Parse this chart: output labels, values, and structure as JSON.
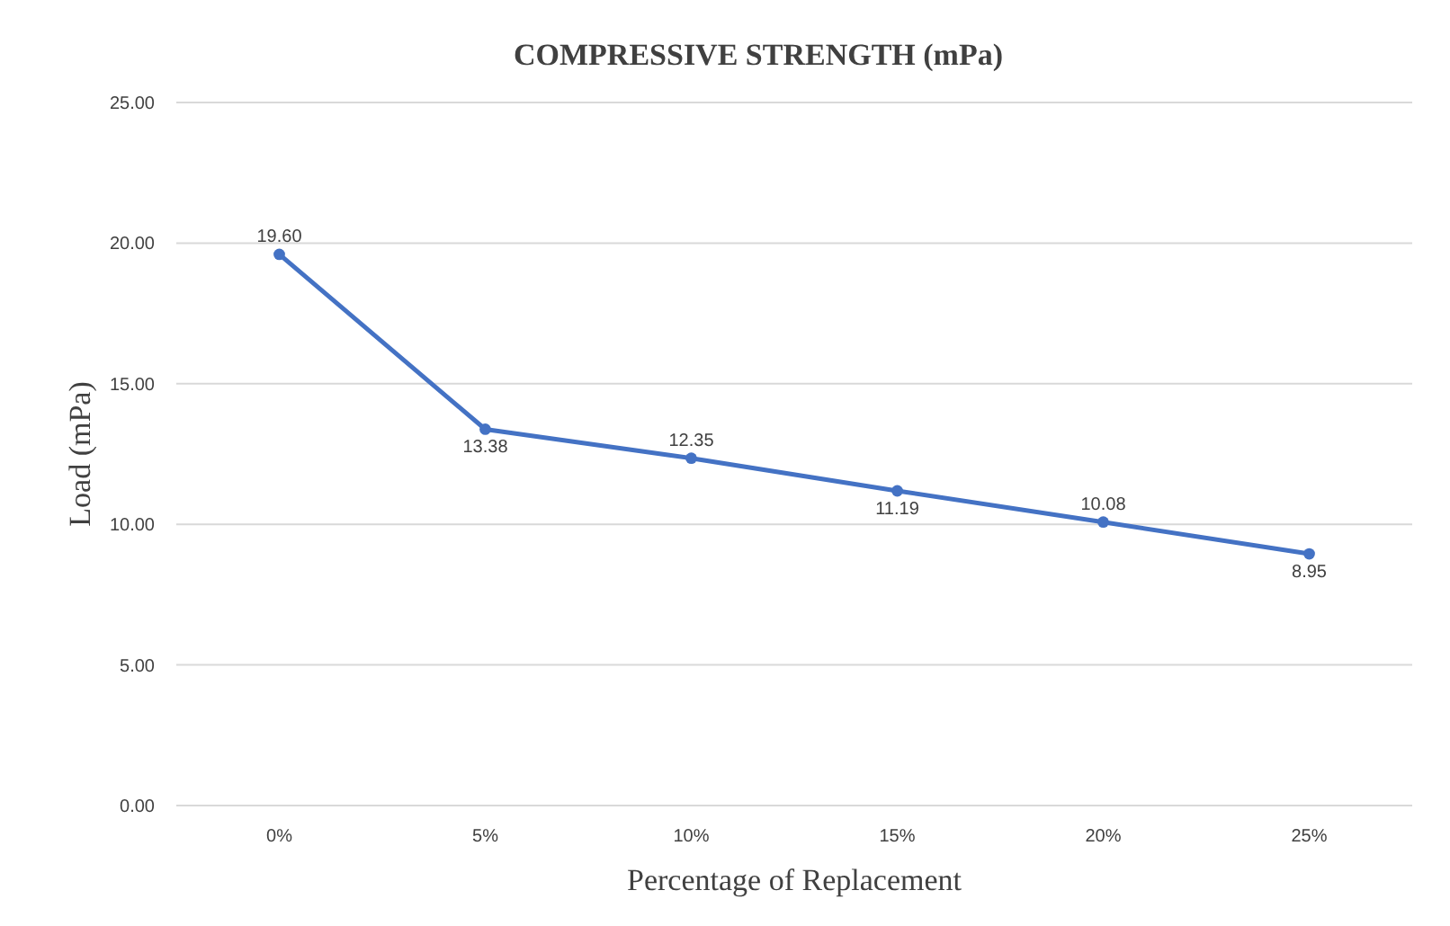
{
  "chart_data": {
    "type": "line",
    "title": "COMPRESSIVE STRENGTH (mPa)",
    "xlabel": "Percentage of Replacement",
    "ylabel": "Load (mPa)",
    "categories": [
      "0%",
      "5%",
      "10%",
      "15%",
      "20%",
      "25%"
    ],
    "series": [
      {
        "color": "#4472c4",
        "values": [
          19.6,
          13.38,
          12.35,
          11.19,
          10.08,
          8.95
        ],
        "value_labels": [
          "19.60",
          "13.38",
          "12.35",
          "11.19",
          "10.08",
          "8.95"
        ]
      }
    ],
    "ylim": [
      0,
      25
    ],
    "yticks": [
      {
        "value": 0,
        "label": "0.00"
      },
      {
        "value": 5,
        "label": "5.00"
      },
      {
        "value": 10,
        "label": "10.00"
      },
      {
        "value": 15,
        "label": "15.00"
      },
      {
        "value": 20,
        "label": "20.00"
      },
      {
        "value": 25,
        "label": "25.00"
      }
    ],
    "grid": "y",
    "marker": "circle",
    "line_style": "solid"
  }
}
